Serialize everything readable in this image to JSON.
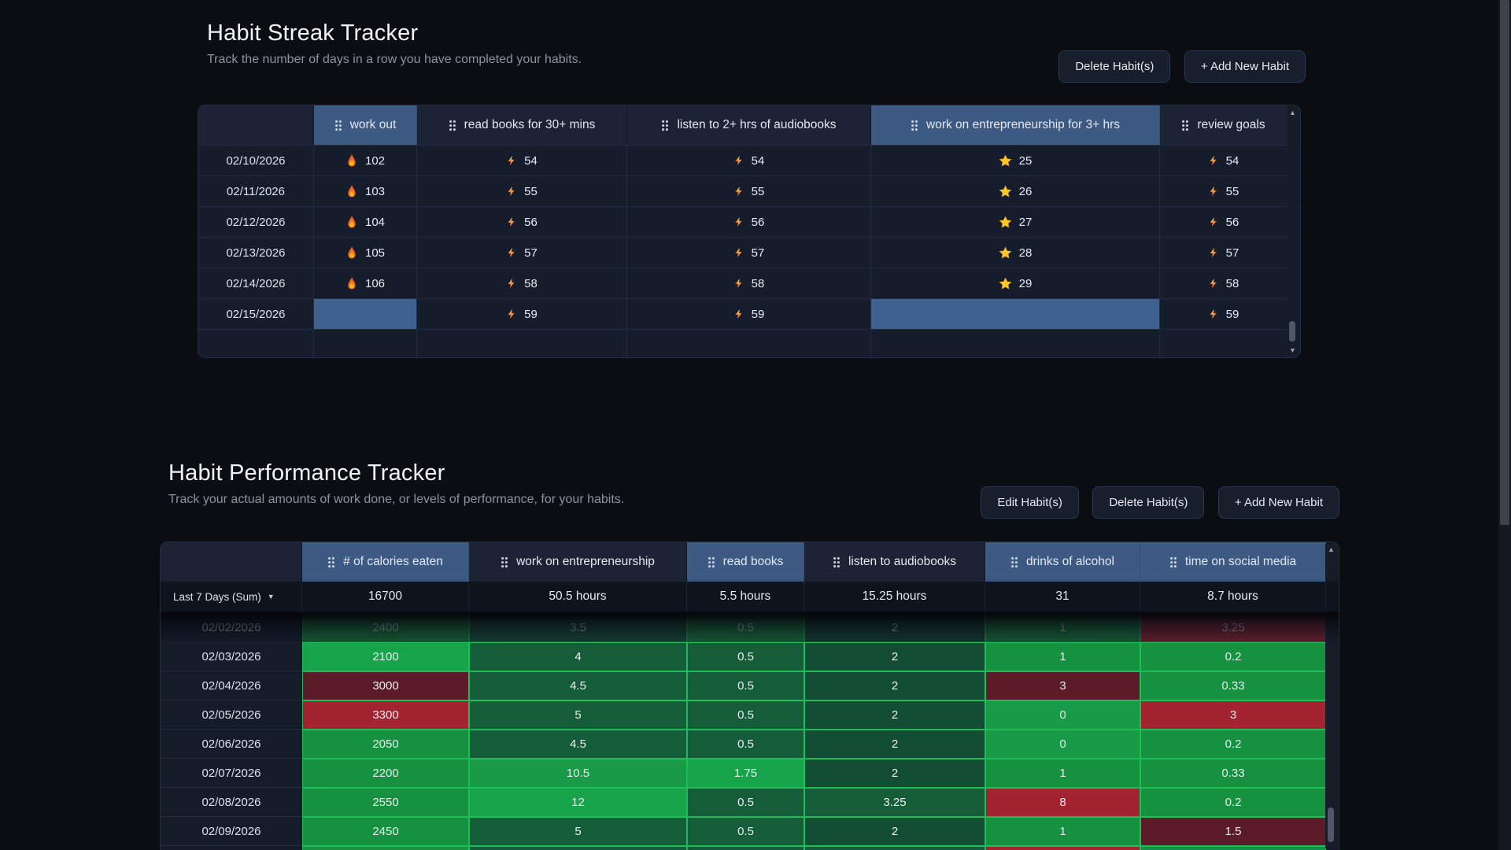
{
  "streak_section": {
    "title": "Habit Streak Tracker",
    "subtitle": "Track the number of days in a row you have completed your habits.",
    "buttons": [
      {
        "label": "Delete Habit(s)"
      },
      {
        "label": "+ Add New Habit"
      }
    ],
    "table": {
      "columns": [
        {
          "label": "work out",
          "icon": "flame-icon",
          "selected": true
        },
        {
          "label": "read books for 30+ mins",
          "icon": "bolt-icon",
          "selected": false
        },
        {
          "label": "listen to 2+ hrs of audiobooks",
          "icon": "bolt-icon",
          "selected": false
        },
        {
          "label": "work on entrepreneurship for 3+ hrs",
          "icon": "star-icon",
          "selected": true
        },
        {
          "label": "review goals",
          "icon": "bolt-icon",
          "selected": false
        }
      ],
      "rows": [
        {
          "date": "02/10/2026",
          "values": [
            "102",
            "54",
            "54",
            "25",
            "54"
          ]
        },
        {
          "date": "02/11/2026",
          "values": [
            "103",
            "55",
            "55",
            "26",
            "55"
          ]
        },
        {
          "date": "02/12/2026",
          "values": [
            "104",
            "56",
            "56",
            "27",
            "56"
          ]
        },
        {
          "date": "02/13/2026",
          "values": [
            "105",
            "57",
            "57",
            "28",
            "57"
          ]
        },
        {
          "date": "02/14/2026",
          "values": [
            "106",
            "58",
            "58",
            "29",
            "58"
          ]
        },
        {
          "date": "02/15/2026",
          "values": [
            null,
            "59",
            "59",
            null,
            "59"
          ]
        }
      ]
    }
  },
  "performance_section": {
    "title": "Habit Performance Tracker",
    "subtitle": "Track your actual amounts of work done, or levels of performance, for your habits.",
    "buttons": [
      {
        "label": "Edit Habit(s)"
      },
      {
        "label": "Delete Habit(s)"
      },
      {
        "label": "+ Add New Habit"
      }
    ],
    "table": {
      "columns": [
        {
          "label": "# of calories eaten",
          "selected": true
        },
        {
          "label": "work on entrepreneurship",
          "selected": false
        },
        {
          "label": "read books",
          "selected": true
        },
        {
          "label": "listen to audiobooks",
          "selected": false
        },
        {
          "label": "drinks of alcohol",
          "selected": true
        },
        {
          "label": "time on social media",
          "selected": true
        }
      ],
      "summary": {
        "label": "Last 7 Days (Sum)",
        "values": [
          "16700",
          "50.5 hours",
          "5.5 hours",
          "15.25 hours",
          "31",
          "8.7 hours"
        ]
      },
      "rows": [
        {
          "date": "02/02/2026",
          "faded": true,
          "cells": [
            {
              "v": "2400",
              "c": "mid"
            },
            {
              "v": "3.5",
              "c": "dark"
            },
            {
              "v": "0.5",
              "c": "mid"
            },
            {
              "v": "2",
              "c": "dark2"
            },
            {
              "v": "1",
              "c": "mid"
            },
            {
              "v": "3.25",
              "c": "red"
            }
          ]
        },
        {
          "date": "02/03/2026",
          "cells": [
            {
              "v": "2100",
              "c": "bright"
            },
            {
              "v": "4",
              "c": "dark"
            },
            {
              "v": "0.5",
              "c": "dark"
            },
            {
              "v": "2",
              "c": "dark2"
            },
            {
              "v": "1",
              "c": "mid"
            },
            {
              "v": "0.2",
              "c": "mid"
            }
          ]
        },
        {
          "date": "02/04/2026",
          "cells": [
            {
              "v": "3000",
              "c": "maroon"
            },
            {
              "v": "4.5",
              "c": "dark"
            },
            {
              "v": "0.5",
              "c": "dark"
            },
            {
              "v": "2",
              "c": "dark2"
            },
            {
              "v": "3",
              "c": "maroon"
            },
            {
              "v": "0.33",
              "c": "mid"
            }
          ]
        },
        {
          "date": "02/05/2026",
          "cells": [
            {
              "v": "3300",
              "c": "red"
            },
            {
              "v": "5",
              "c": "dark"
            },
            {
              "v": "0.5",
              "c": "dark"
            },
            {
              "v": "2",
              "c": "dark2"
            },
            {
              "v": "0",
              "c": "semi"
            },
            {
              "v": "3",
              "c": "red"
            }
          ]
        },
        {
          "date": "02/06/2026",
          "cells": [
            {
              "v": "2050",
              "c": "mid"
            },
            {
              "v": "4.5",
              "c": "dark"
            },
            {
              "v": "0.5",
              "c": "dark"
            },
            {
              "v": "2",
              "c": "dark2"
            },
            {
              "v": "0",
              "c": "semi"
            },
            {
              "v": "0.2",
              "c": "mid"
            }
          ]
        },
        {
          "date": "02/07/2026",
          "cells": [
            {
              "v": "2200",
              "c": "mid"
            },
            {
              "v": "10.5",
              "c": "semi"
            },
            {
              "v": "1.75",
              "c": "bright"
            },
            {
              "v": "2",
              "c": "dark2"
            },
            {
              "v": "1",
              "c": "mid"
            },
            {
              "v": "0.33",
              "c": "mid"
            }
          ]
        },
        {
          "date": "02/08/2026",
          "cells": [
            {
              "v": "2550",
              "c": "mid"
            },
            {
              "v": "12",
              "c": "bright"
            },
            {
              "v": "0.5",
              "c": "dark"
            },
            {
              "v": "3.25",
              "c": "dark"
            },
            {
              "v": "8",
              "c": "red"
            },
            {
              "v": "0.2",
              "c": "mid"
            }
          ]
        },
        {
          "date": "02/09/2026",
          "cells": [
            {
              "v": "2450",
              "c": "mid"
            },
            {
              "v": "5",
              "c": "dark"
            },
            {
              "v": "0.5",
              "c": "dark"
            },
            {
              "v": "2",
              "c": "dark2"
            },
            {
              "v": "1",
              "c": "mid"
            },
            {
              "v": "1.5",
              "c": "maroon"
            }
          ]
        }
      ],
      "partial_row": [
        "mid",
        "dark",
        "dark",
        "dark",
        "red",
        "mid"
      ]
    }
  },
  "colors": {
    "header_selected": "#3d5a82",
    "cell_selected": "#3f6190",
    "green_bright": "#17a34a",
    "green_mid": "#16913f",
    "green_dark": "#155c39",
    "red_bright": "#a32331",
    "red_dark": "#5c1b29",
    "cell_border": "#1fbd59"
  }
}
